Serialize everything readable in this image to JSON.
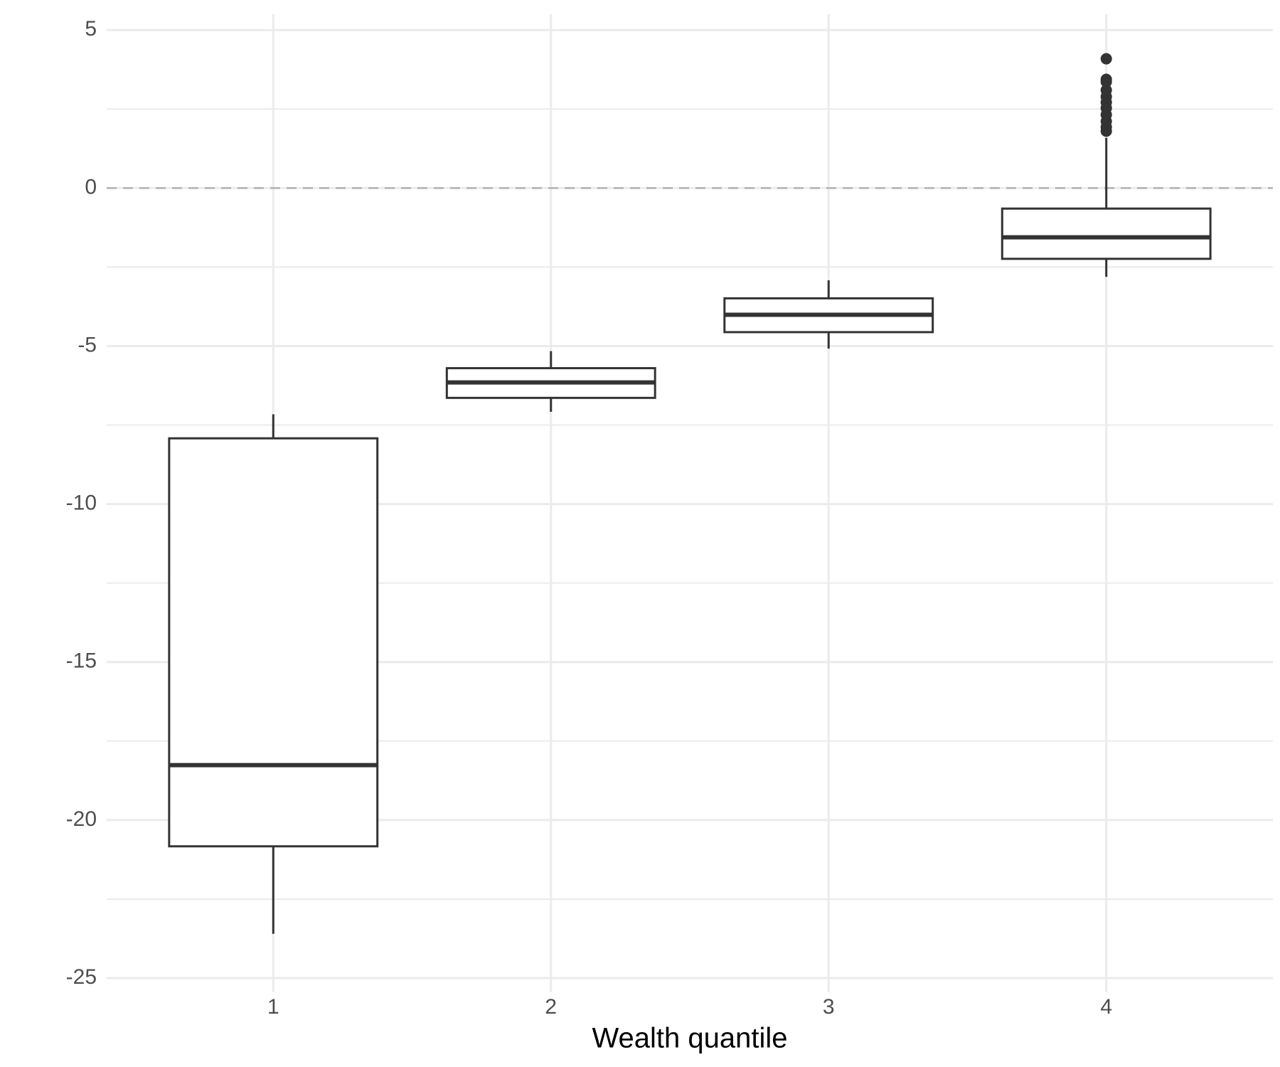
{
  "chart_data": {
    "type": "boxplot",
    "x_label": "Wealth quantile",
    "categories": [
      "1",
      "2",
      "3",
      "4"
    ],
    "boxes": [
      {
        "whisker_low": -23.6,
        "q1": -20.83,
        "median": -18.26,
        "q3": -7.92,
        "whisker_high": -7.16,
        "outliers": []
      },
      {
        "whisker_low": -7.08,
        "q1": -6.64,
        "median": -6.15,
        "q3": -5.7,
        "whisker_high": -5.16,
        "outliers": []
      },
      {
        "whisker_low": -5.08,
        "q1": -4.56,
        "median": -4.01,
        "q3": -3.49,
        "whisker_high": -2.92,
        "outliers": []
      },
      {
        "whisker_low": -2.81,
        "q1": -2.24,
        "median": -1.56,
        "q3": -0.65,
        "whisker_high": 1.59,
        "outliers": [
          4.09,
          3.44,
          3.36,
          3.1,
          2.89,
          2.71,
          2.53,
          2.32,
          2.11,
          1.93,
          1.8
        ]
      }
    ],
    "color": "#333333",
    "ylim": [
      -25.45,
      5.5
    ],
    "yticks": [
      -25,
      -20,
      -15,
      -10,
      -5,
      0,
      5
    ],
    "hline": 0,
    "grid": true
  }
}
